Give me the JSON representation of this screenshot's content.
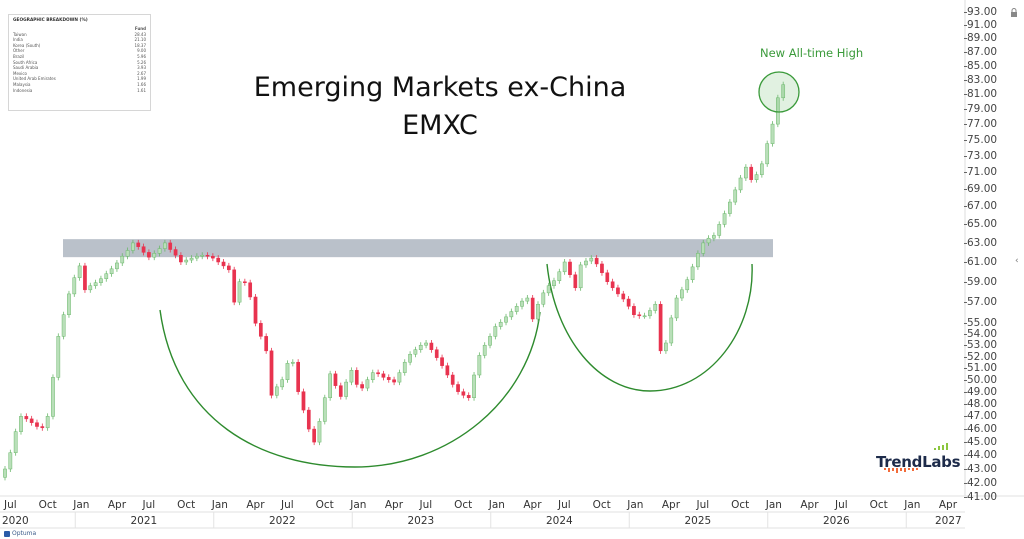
{
  "chart_data": {
    "type": "candlestick",
    "title": "Emerging Markets ex-China",
    "subtitle": "EMXC",
    "annotation": "New All-time High",
    "y_scale": "log",
    "ylim": [
      41,
      93
    ],
    "y_ticks": [
      93,
      91,
      89,
      87,
      85,
      83,
      81,
      79,
      77,
      75,
      73,
      71,
      69,
      67,
      65,
      63,
      61,
      59,
      57,
      55,
      54,
      53,
      52,
      51,
      50,
      49,
      48,
      47,
      46,
      45,
      44,
      43,
      42,
      41
    ],
    "x_month_ticks": [
      "Jul",
      "Oct",
      "Jan",
      "Apr",
      "Jul",
      "Oct",
      "Jan",
      "Apr",
      "Jul",
      "Oct",
      "Jan",
      "Apr",
      "Jul",
      "Oct",
      "Jan",
      "Apr",
      "Jul",
      "Oct",
      "Jan",
      "Apr",
      "Jul",
      "Oct",
      "Jan",
      "Apr",
      "Jul",
      "Oct",
      "Jan",
      "Apr"
    ],
    "x_year_labels": [
      "2020",
      "2021",
      "2022",
      "2023",
      "2024",
      "2025",
      "2026",
      "2027"
    ],
    "xlim": [
      "2020-07",
      "2027-05"
    ],
    "grid": false,
    "candle_interval": "2 weeks",
    "closes": [
      43,
      44.2,
      45.8,
      47,
      46.8,
      46.5,
      46.2,
      46.1,
      47,
      50.2,
      53.8,
      55.8,
      57.8,
      59.4,
      60.6,
      58.2,
      58.6,
      58.9,
      59.3,
      59.8,
      60.3,
      60.9,
      61.6,
      62.2,
      63,
      62.6,
      62,
      61.5,
      61.9,
      62.4,
      63,
      62.3,
      61.7,
      61,
      61.2,
      61.4,
      61.6,
      61.7,
      61.6,
      61.4,
      61,
      60.6,
      60.2,
      57,
      59,
      58.9,
      57.5,
      55,
      53.8,
      52.5,
      48.7,
      49.4,
      50,
      51.4,
      51.5,
      49,
      47.5,
      46,
      45,
      46.6,
      48.5,
      50.5,
      49.5,
      48.6,
      49.8,
      50.8,
      49.6,
      49.3,
      50,
      50.6,
      50.5,
      50.2,
      50,
      49.8,
      50.6,
      51.5,
      52.2,
      52.6,
      53,
      53.2,
      52.6,
      51.9,
      51.2,
      50.4,
      49.6,
      49,
      48.7,
      48.5,
      50.4,
      52.1,
      53,
      53.8,
      54.7,
      55.1,
      55.6,
      56.1,
      56.6,
      57.1,
      57.4,
      55.4,
      56.8,
      57.9,
      58.6,
      59.1,
      60,
      61,
      59.7,
      58.4,
      60.7,
      61.1,
      61.4,
      60.8,
      59.9,
      59,
      58.4,
      57.8,
      57.3,
      56.6,
      55.8,
      55.7,
      55.7,
      56.2,
      56.8,
      52.5,
      53.2,
      55.5,
      57.4,
      58.2,
      59.2,
      60.5,
      61.9,
      63,
      63.5,
      63.8,
      65,
      66.2,
      67.5,
      68.9,
      70.3,
      71.6,
      70.1,
      70.7,
      72,
      74.5,
      77,
      80.5,
      82.3
    ],
    "resistance_zone": [
      61.5,
      63.4
    ],
    "colors": {
      "up": "#b9dfb9",
      "up_border": "#6cb86c",
      "down": "#e8334f",
      "zone": "#bac1ca",
      "arc": "#2e8b2e",
      "highlight": "#3a9a3a"
    }
  },
  "geo_table": {
    "title": "GEOGRAPHIC BREAKDOWN (%)",
    "column": "Fund",
    "rows": [
      {
        "country": "Taiwan",
        "value": "28.43"
      },
      {
        "country": "India",
        "value": "21.10"
      },
      {
        "country": "Korea (South)",
        "value": "18.37"
      },
      {
        "country": "Other",
        "value": "9.00"
      },
      {
        "country": "Brazil",
        "value": "5.96"
      },
      {
        "country": "South Africa",
        "value": "5.26"
      },
      {
        "country": "Saudi Arabia",
        "value": "3.93"
      },
      {
        "country": "Mexico",
        "value": "2.67"
      },
      {
        "country": "United Arab Emirates",
        "value": "1.99"
      },
      {
        "country": "Malaysia",
        "value": "1.66"
      },
      {
        "country": "Indonesia",
        "value": "1.61"
      }
    ]
  },
  "branding": {
    "logo": "TrendLabs",
    "footer": "Optuma"
  }
}
